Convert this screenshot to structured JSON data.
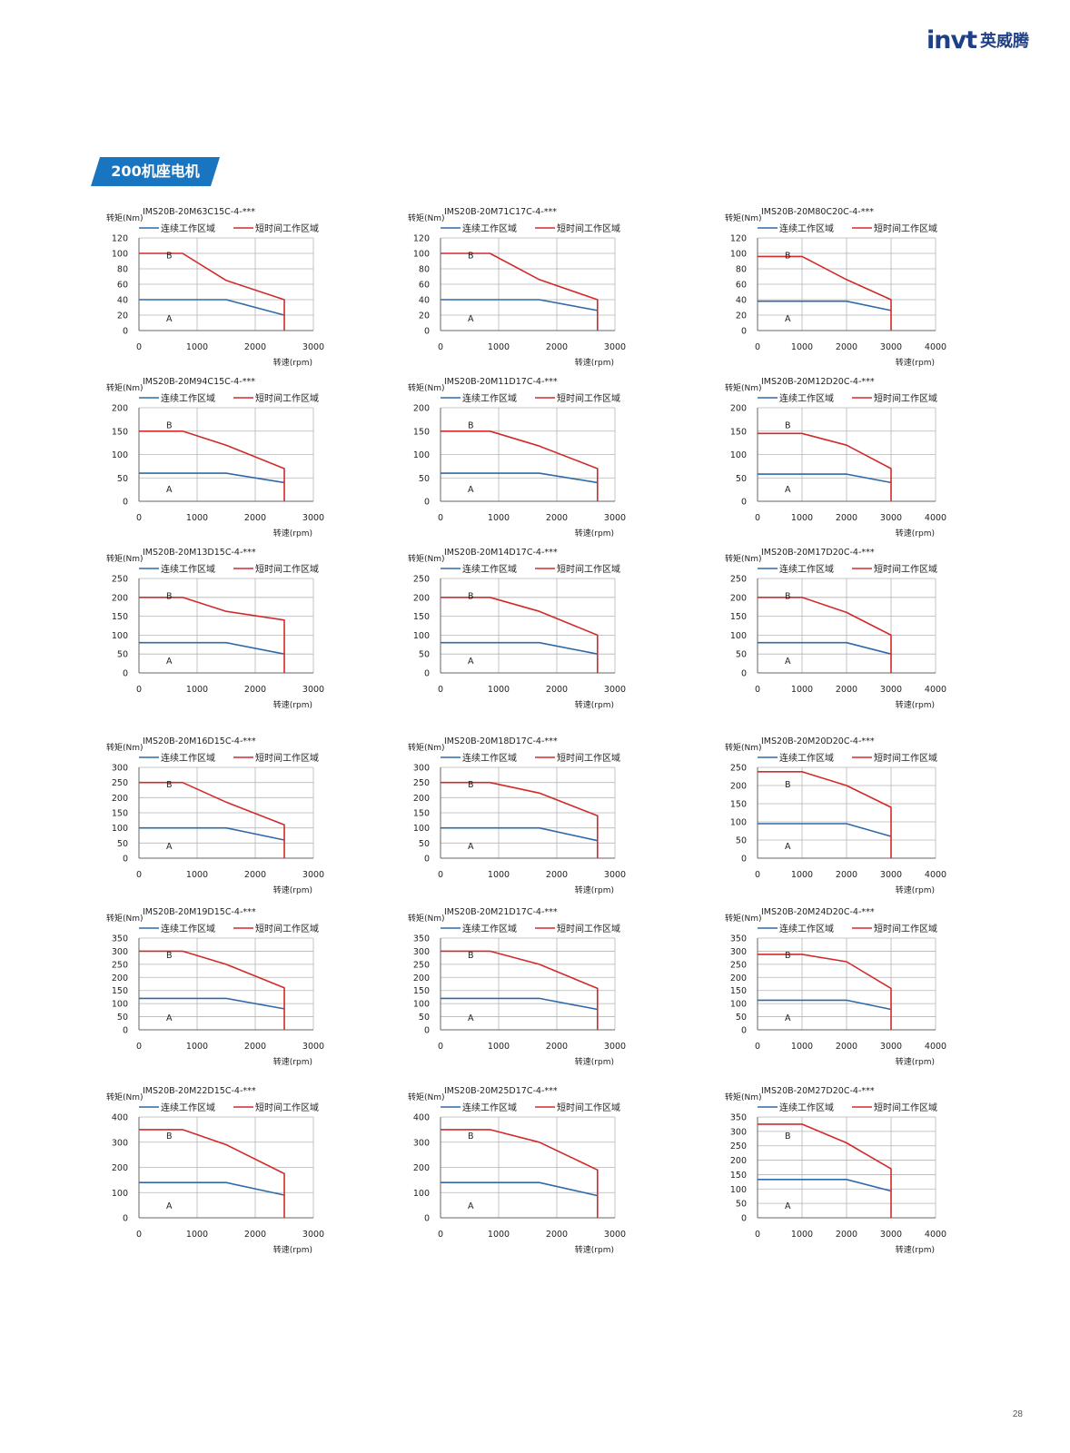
{
  "header": {
    "logo_text": "invt",
    "logo_cn": "英威腾",
    "brand_color": "#1f3f86"
  },
  "section": {
    "title": "200机座电机",
    "tab_color": "#1a75c0"
  },
  "page_number": "28",
  "legend": {
    "continuous": "连续工作区域",
    "short_time": "短时间工作区域"
  },
  "axis": {
    "ylabel": "转矩(Nm)",
    "xlabel": "转速(rpm)"
  },
  "region_labels": {
    "a": "A",
    "b": "B"
  },
  "colors": {
    "continuous": "#2e6aa8",
    "short_time": "#d22a2a",
    "grid": "#b5b5b5"
  },
  "chart_data": [
    {
      "type": "line",
      "title": "IMS20B-20M63C15C-4-***",
      "xlim": [
        0,
        3000
      ],
      "xticks": [
        0,
        1000,
        2000,
        3000
      ],
      "ylim": [
        0,
        120
      ],
      "yticks": [
        0,
        20,
        40,
        60,
        80,
        100,
        120
      ],
      "series": [
        {
          "name": "连续工作区域",
          "x": [
            0,
            1500,
            2500
          ],
          "y": [
            40,
            40,
            20
          ]
        },
        {
          "name": "短时间工作区域",
          "x": [
            0,
            750,
            1500,
            2500,
            2500
          ],
          "y": [
            100,
            100,
            65,
            40,
            0
          ]
        }
      ]
    },
    {
      "type": "line",
      "title": "IMS20B-20M71C17C-4-***",
      "xlim": [
        0,
        3000
      ],
      "xticks": [
        0,
        1000,
        2000,
        3000
      ],
      "ylim": [
        0,
        120
      ],
      "yticks": [
        0,
        20,
        40,
        60,
        80,
        100,
        120
      ],
      "series": [
        {
          "name": "连续工作区域",
          "x": [
            0,
            1700,
            2700
          ],
          "y": [
            40,
            40,
            26
          ]
        },
        {
          "name": "短时间工作区域",
          "x": [
            0,
            850,
            1700,
            2700,
            2700
          ],
          "y": [
            100,
            100,
            66,
            40,
            0
          ]
        }
      ]
    },
    {
      "type": "line",
      "title": "IMS20B-20M80C20C-4-***",
      "xlim": [
        0,
        4000
      ],
      "xticks": [
        0,
        1000,
        2000,
        3000,
        4000
      ],
      "ylim": [
        0,
        120
      ],
      "yticks": [
        0,
        20,
        40,
        60,
        80,
        100,
        120
      ],
      "series": [
        {
          "name": "连续工作区域",
          "x": [
            0,
            2000,
            3000
          ],
          "y": [
            38,
            38,
            26
          ]
        },
        {
          "name": "短时间工作区域",
          "x": [
            0,
            1000,
            2000,
            3000,
            3000
          ],
          "y": [
            96,
            96,
            66,
            40,
            0
          ]
        }
      ]
    },
    {
      "type": "line",
      "title": "IMS20B-20M94C15C-4-***",
      "xlim": [
        0,
        3000
      ],
      "xticks": [
        0,
        1000,
        2000,
        3000
      ],
      "ylim": [
        0,
        200
      ],
      "yticks": [
        0,
        50,
        100,
        150,
        200
      ],
      "series": [
        {
          "name": "连续工作区域",
          "x": [
            0,
            1500,
            2500
          ],
          "y": [
            60,
            60,
            40
          ]
        },
        {
          "name": "短时间工作区域",
          "x": [
            0,
            750,
            1500,
            2500,
            2500
          ],
          "y": [
            150,
            150,
            120,
            70,
            0
          ]
        }
      ]
    },
    {
      "type": "line",
      "title": "IMS20B-20M11D17C-4-***",
      "xlim": [
        0,
        3000
      ],
      "xticks": [
        0,
        1000,
        2000,
        3000
      ],
      "ylim": [
        0,
        200
      ],
      "yticks": [
        0,
        50,
        100,
        150,
        200
      ],
      "series": [
        {
          "name": "连续工作区域",
          "x": [
            0,
            1700,
            2700
          ],
          "y": [
            60,
            60,
            40
          ]
        },
        {
          "name": "短时间工作区域",
          "x": [
            0,
            850,
            1700,
            2700,
            2700
          ],
          "y": [
            150,
            150,
            118,
            70,
            0
          ]
        }
      ]
    },
    {
      "type": "line",
      "title": "IMS20B-20M12D20C-4-***",
      "xlim": [
        0,
        4000
      ],
      "xticks": [
        0,
        1000,
        2000,
        3000,
        4000
      ],
      "ylim": [
        0,
        200
      ],
      "yticks": [
        0,
        50,
        100,
        150,
        200
      ],
      "series": [
        {
          "name": "连续工作区域",
          "x": [
            0,
            2000,
            3000
          ],
          "y": [
            58,
            58,
            40
          ]
        },
        {
          "name": "短时间工作区域",
          "x": [
            0,
            1000,
            2000,
            3000,
            3000
          ],
          "y": [
            145,
            145,
            120,
            70,
            0
          ]
        }
      ]
    },
    {
      "type": "line",
      "title": "IMS20B-20M13D15C-4-***",
      "xlim": [
        0,
        3000
      ],
      "xticks": [
        0,
        1000,
        2000,
        3000
      ],
      "ylim": [
        0,
        250
      ],
      "yticks": [
        0,
        50,
        100,
        150,
        200,
        250
      ],
      "series": [
        {
          "name": "连续工作区域",
          "x": [
            0,
            1500,
            2500
          ],
          "y": [
            80,
            80,
            50
          ]
        },
        {
          "name": "短时间工作区域",
          "x": [
            0,
            750,
            1500,
            2500,
            2500
          ],
          "y": [
            200,
            200,
            163,
            140,
            0
          ]
        }
      ]
    },
    {
      "type": "line",
      "title": "IMS20B-20M14D17C-4-***",
      "xlim": [
        0,
        3000
      ],
      "xticks": [
        0,
        1000,
        2000,
        3000
      ],
      "ylim": [
        0,
        250
      ],
      "yticks": [
        0,
        50,
        100,
        150,
        200,
        250
      ],
      "series": [
        {
          "name": "连续工作区域",
          "x": [
            0,
            1700,
            2700
          ],
          "y": [
            80,
            80,
            50
          ]
        },
        {
          "name": "短时间工作区域",
          "x": [
            0,
            850,
            1700,
            2700,
            2700
          ],
          "y": [
            200,
            200,
            163,
            100,
            0
          ]
        }
      ]
    },
    {
      "type": "line",
      "title": "IMS20B-20M17D20C-4-***",
      "xlim": [
        0,
        4000
      ],
      "xticks": [
        0,
        1000,
        2000,
        3000,
        4000
      ],
      "ylim": [
        0,
        250
      ],
      "yticks": [
        0,
        50,
        100,
        150,
        200,
        250
      ],
      "series": [
        {
          "name": "连续工作区域",
          "x": [
            0,
            2000,
            3000
          ],
          "y": [
            80,
            80,
            50
          ]
        },
        {
          "name": "短时间工作区域",
          "x": [
            0,
            1000,
            2000,
            3000,
            3000
          ],
          "y": [
            200,
            200,
            160,
            100,
            0
          ]
        }
      ]
    },
    {
      "type": "line",
      "title": "IMS20B-20M16D15C-4-***",
      "xlim": [
        0,
        3000
      ],
      "xticks": [
        0,
        1000,
        2000,
        3000
      ],
      "ylim": [
        0,
        300
      ],
      "yticks": [
        0,
        50,
        100,
        150,
        200,
        250,
        300
      ],
      "series": [
        {
          "name": "连续工作区域",
          "x": [
            0,
            1500,
            2500
          ],
          "y": [
            100,
            100,
            60
          ]
        },
        {
          "name": "短时间工作区域",
          "x": [
            0,
            750,
            1500,
            2500,
            2500
          ],
          "y": [
            250,
            250,
            185,
            110,
            0
          ]
        }
      ]
    },
    {
      "type": "line",
      "title": "IMS20B-20M18D17C-4-***",
      "xlim": [
        0,
        3000
      ],
      "xticks": [
        0,
        1000,
        2000,
        3000
      ],
      "ylim": [
        0,
        300
      ],
      "yticks": [
        0,
        50,
        100,
        150,
        200,
        250,
        300
      ],
      "series": [
        {
          "name": "连续工作区域",
          "x": [
            0,
            1700,
            2700
          ],
          "y": [
            100,
            100,
            58
          ]
        },
        {
          "name": "短时间工作区域",
          "x": [
            0,
            850,
            1700,
            2700,
            2700
          ],
          "y": [
            250,
            250,
            215,
            140,
            0
          ]
        }
      ]
    },
    {
      "type": "line",
      "title": "IMS20B-20M20D20C-4-***",
      "xlim": [
        0,
        4000
      ],
      "xticks": [
        0,
        1000,
        2000,
        3000,
        4000
      ],
      "ylim": [
        0,
        250
      ],
      "yticks": [
        0,
        50,
        100,
        150,
        200,
        250
      ],
      "series": [
        {
          "name": "连续工作区域",
          "x": [
            0,
            2000,
            3000
          ],
          "y": [
            95,
            95,
            60
          ]
        },
        {
          "name": "短时间工作区域",
          "x": [
            0,
            1000,
            2000,
            3000,
            3000
          ],
          "y": [
            238,
            238,
            200,
            140,
            0
          ]
        }
      ]
    },
    {
      "type": "line",
      "title": "IMS20B-20M19D15C-4-***",
      "xlim": [
        0,
        3000
      ],
      "xticks": [
        0,
        1000,
        2000,
        3000
      ],
      "ylim": [
        0,
        350
      ],
      "yticks": [
        0,
        50,
        100,
        150,
        200,
        250,
        300,
        350
      ],
      "series": [
        {
          "name": "连续工作区域",
          "x": [
            0,
            1500,
            2500
          ],
          "y": [
            120,
            120,
            80
          ]
        },
        {
          "name": "短时间工作区域",
          "x": [
            0,
            750,
            1500,
            2500,
            2500
          ],
          "y": [
            300,
            300,
            250,
            160,
            0
          ]
        }
      ]
    },
    {
      "type": "line",
      "title": "IMS20B-20M21D17C-4-***",
      "xlim": [
        0,
        3000
      ],
      "xticks": [
        0,
        1000,
        2000,
        3000
      ],
      "ylim": [
        0,
        350
      ],
      "yticks": [
        0,
        50,
        100,
        150,
        200,
        250,
        300,
        350
      ],
      "series": [
        {
          "name": "连续工作区域",
          "x": [
            0,
            1700,
            2700
          ],
          "y": [
            120,
            120,
            78
          ]
        },
        {
          "name": "短时间工作区域",
          "x": [
            0,
            850,
            1700,
            2700,
            2700
          ],
          "y": [
            300,
            300,
            250,
            158,
            0
          ]
        }
      ]
    },
    {
      "type": "line",
      "title": "IMS20B-20M24D20C-4-***",
      "xlim": [
        0,
        4000
      ],
      "xticks": [
        0,
        1000,
        2000,
        3000,
        4000
      ],
      "ylim": [
        0,
        350
      ],
      "yticks": [
        0,
        50,
        100,
        150,
        200,
        250,
        300,
        350
      ],
      "series": [
        {
          "name": "连续工作区域",
          "x": [
            0,
            2000,
            3000
          ],
          "y": [
            113,
            113,
            78
          ]
        },
        {
          "name": "短时间工作区域",
          "x": [
            0,
            1000,
            2000,
            3000,
            3000
          ],
          "y": [
            288,
            288,
            260,
            158,
            0
          ]
        }
      ]
    },
    {
      "type": "line",
      "title": "IMS20B-20M22D15C-4-***",
      "xlim": [
        0,
        3000
      ],
      "xticks": [
        0,
        1000,
        2000,
        3000
      ],
      "ylim": [
        0,
        400
      ],
      "yticks": [
        0,
        100,
        200,
        300,
        400
      ],
      "series": [
        {
          "name": "连续工作区域",
          "x": [
            0,
            1500,
            2500
          ],
          "y": [
            140,
            140,
            90
          ]
        },
        {
          "name": "短时间工作区域",
          "x": [
            0,
            750,
            1500,
            2500,
            2500
          ],
          "y": [
            350,
            350,
            290,
            175,
            0
          ]
        }
      ]
    },
    {
      "type": "line",
      "title": "IMS20B-20M25D17C-4-***",
      "xlim": [
        0,
        3000
      ],
      "xticks": [
        0,
        1000,
        2000,
        3000
      ],
      "ylim": [
        0,
        400
      ],
      "yticks": [
        0,
        100,
        200,
        300,
        400
      ],
      "series": [
        {
          "name": "连续工作区域",
          "x": [
            0,
            1700,
            2700
          ],
          "y": [
            140,
            140,
            88
          ]
        },
        {
          "name": "短时间工作区域",
          "x": [
            0,
            850,
            1700,
            2700,
            2700
          ],
          "y": [
            350,
            350,
            300,
            190,
            0
          ]
        }
      ]
    },
    {
      "type": "line",
      "title": "IMS20B-20M27D20C-4-***",
      "xlim": [
        0,
        4000
      ],
      "xticks": [
        0,
        1000,
        2000,
        3000,
        4000
      ],
      "ylim": [
        0,
        350
      ],
      "yticks": [
        0,
        50,
        100,
        150,
        200,
        250,
        300,
        350
      ],
      "series": [
        {
          "name": "连续工作区域",
          "x": [
            0,
            2000,
            3000
          ],
          "y": [
            133,
            133,
            93
          ]
        },
        {
          "name": "短时间工作区域",
          "x": [
            0,
            1000,
            2000,
            3000,
            3000
          ],
          "y": [
            325,
            325,
            260,
            170,
            0
          ]
        }
      ]
    }
  ]
}
